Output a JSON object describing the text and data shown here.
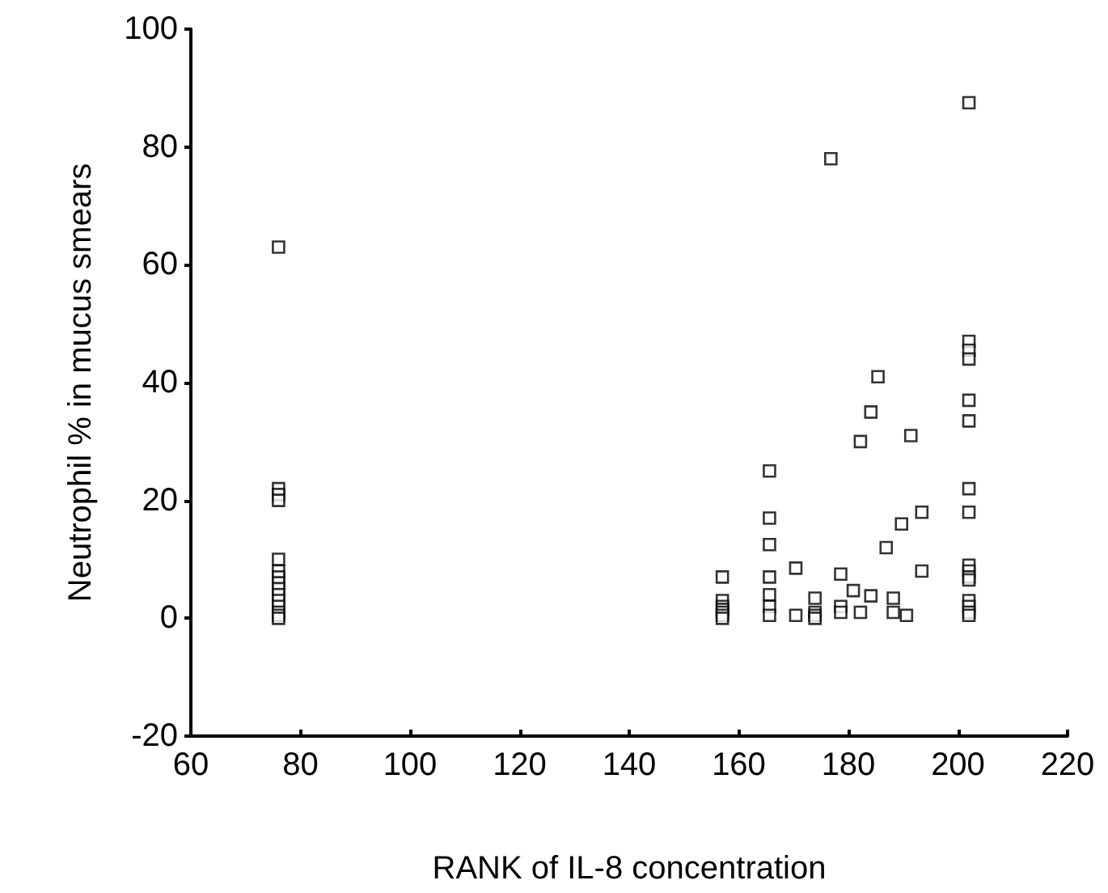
{
  "chart_data": {
    "type": "scatter",
    "xlabel": "RANK of IL-8 concentration",
    "ylabel": "Neutrophil % in mucus smears",
    "marker": "square",
    "grid": false,
    "xlim": [
      60,
      220
    ],
    "xticks": [
      60,
      80,
      100,
      120,
      140,
      160,
      180,
      200,
      220
    ],
    "ylim": [
      -20,
      100
    ],
    "yticks": [
      -20,
      0,
      20,
      40,
      60,
      80,
      100
    ],
    "series": [
      {
        "color": "#000000",
        "x": [
          76,
          76,
          76,
          76,
          76,
          76,
          76,
          76,
          76,
          76,
          76,
          76,
          76,
          76,
          76,
          157,
          157,
          157,
          157,
          157,
          157,
          157,
          165.6,
          165.6,
          165.6,
          165.6,
          165.6,
          165.6,
          165.6,
          170.4,
          170.4,
          173.9,
          173.9,
          173.9,
          173.9,
          178.6,
          178.6,
          178.6,
          180.9,
          182.2,
          182.2,
          184.1,
          184.1,
          185.4,
          186.9,
          188.2,
          188.2,
          189.7,
          190.6,
          191.4,
          193.4,
          193.4,
          176.8,
          202,
          202,
          202,
          202,
          202,
          202,
          202,
          202,
          202,
          202,
          202,
          202,
          202,
          202,
          202,
          202
        ],
        "values": [
          63,
          22,
          21,
          20,
          10,
          8,
          7,
          6,
          5,
          4,
          3,
          2,
          1,
          0.5,
          0,
          7,
          3,
          2,
          1.5,
          1,
          0.5,
          0,
          25,
          17,
          12.5,
          7,
          4,
          2,
          0.5,
          8.5,
          0.5,
          3.4,
          1,
          0.5,
          0,
          7.5,
          2,
          1,
          4.7,
          30,
          1,
          35,
          3.8,
          41,
          12,
          3.4,
          1,
          16,
          0.5,
          31,
          18,
          8,
          78,
          87.5,
          47,
          45.5,
          44,
          37,
          33.5,
          22,
          18,
          9,
          8,
          7,
          6.5,
          3,
          2,
          1,
          0.5
        ]
      }
    ]
  }
}
